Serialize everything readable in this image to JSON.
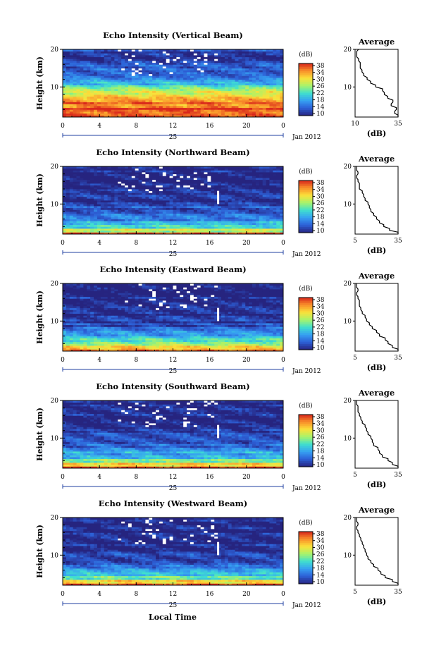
{
  "figure": {
    "xlabel": "Local Time",
    "date_label": "Jan 2012",
    "day_label": "25",
    "time_ticks": [
      "0",
      "4",
      "8",
      "12",
      "16",
      "20",
      "0"
    ],
    "height_axis_label": "Height (km)",
    "height_ticks": [
      "20",
      "10"
    ],
    "colorbar_unit": "(dB)",
    "colorbar_ticks": [
      "38",
      "34",
      "30",
      "26",
      "22",
      "18",
      "14",
      "10"
    ],
    "colormap": [
      "#26247f",
      "#2d5fd6",
      "#36a0f2",
      "#3fe0cf",
      "#a8f36a",
      "#fbe13a",
      "#f98f2a",
      "#d8261b"
    ],
    "average_title": "Average",
    "average_xlabel": "(dB)"
  },
  "chart_data": [
    {
      "type": "heatmap",
      "title": "Echo Intensity (Vertical Beam)",
      "xlabel": "Local Time",
      "ylabel": "Height (km)",
      "xlim": [
        0,
        24
      ],
      "ylim": [
        2,
        20
      ],
      "color_range": [
        10,
        38
      ],
      "color_unit": "dB",
      "profile": {
        "title": "Average",
        "xlabel": "(dB)",
        "x_ticks": [
          "10",
          "35"
        ],
        "xlim": [
          10,
          35
        ],
        "heights": [
          2,
          3,
          4,
          5,
          6,
          7,
          8,
          9,
          10,
          11,
          12,
          13,
          14,
          15,
          16,
          17,
          18,
          19,
          20
        ],
        "values": [
          35,
          33,
          34,
          31,
          32,
          29,
          27,
          26,
          22,
          19,
          17,
          15,
          14,
          13,
          13,
          12,
          11,
          11,
          12
        ]
      }
    },
    {
      "type": "heatmap",
      "title": "Echo Intensity (Northward Beam)",
      "xlabel": "Local Time",
      "ylabel": "Height (km)",
      "xlim": [
        0,
        24
      ],
      "ylim": [
        2,
        20
      ],
      "color_range": [
        10,
        38
      ],
      "color_unit": "dB",
      "profile": {
        "title": "Average",
        "xlabel": "(dB)",
        "x_ticks": [
          "5",
          "35"
        ],
        "xlim": [
          5,
          35
        ],
        "heights": [
          2,
          3,
          4,
          5,
          6,
          7,
          8,
          9,
          10,
          11,
          12,
          13,
          14,
          15,
          16,
          17,
          18,
          19,
          20
        ],
        "values": [
          35,
          29,
          25,
          22,
          20,
          18,
          16,
          15,
          14,
          12,
          11,
          10,
          8,
          8,
          7,
          6,
          7,
          6,
          6
        ]
      }
    },
    {
      "type": "heatmap",
      "title": "Echo Intensity (Eastward Beam)",
      "xlabel": "Local Time",
      "ylabel": "Height (km)",
      "xlim": [
        0,
        24
      ],
      "ylim": [
        2,
        20
      ],
      "color_range": [
        10,
        38
      ],
      "color_unit": "dB",
      "profile": {
        "title": "Average",
        "xlabel": "(dB)",
        "x_ticks": [
          "5",
          "35"
        ],
        "xlim": [
          5,
          35
        ],
        "heights": [
          2,
          3,
          4,
          5,
          6,
          7,
          8,
          9,
          10,
          11,
          12,
          13,
          14,
          15,
          16,
          17,
          18,
          19,
          20
        ],
        "values": [
          35,
          31,
          28,
          26,
          22,
          20,
          17,
          15,
          13,
          12,
          10,
          9,
          8,
          8,
          7,
          6,
          7,
          6,
          6
        ]
      }
    },
    {
      "type": "heatmap",
      "title": "Echo Intensity (Southward Beam)",
      "xlabel": "Local Time",
      "ylabel": "Height (km)",
      "xlim": [
        0,
        24
      ],
      "ylim": [
        2,
        20
      ],
      "color_range": [
        10,
        38
      ],
      "color_unit": "dB",
      "profile": {
        "title": "Average",
        "xlabel": "(dB)",
        "x_ticks": [
          "5",
          "35"
        ],
        "xlim": [
          5,
          35
        ],
        "heights": [
          2,
          3,
          4,
          5,
          6,
          7,
          8,
          9,
          10,
          11,
          12,
          13,
          14,
          15,
          16,
          17,
          18,
          19,
          20
        ],
        "values": [
          35,
          31,
          28,
          24,
          22,
          21,
          18,
          17,
          16,
          14,
          13,
          12,
          10,
          9,
          8,
          7,
          7,
          6,
          6
        ]
      }
    },
    {
      "type": "heatmap",
      "title": "Echo Intensity (Westward Beam)",
      "xlabel": "Local Time",
      "ylabel": "Height (km)",
      "xlim": [
        0,
        24
      ],
      "ylim": [
        2,
        20
      ],
      "color_range": [
        10,
        38
      ],
      "color_unit": "dB",
      "profile": {
        "title": "Average",
        "xlabel": "(dB)",
        "x_ticks": [
          "5",
          "35"
        ],
        "xlim": [
          5,
          35
        ],
        "heights": [
          2,
          3,
          4,
          5,
          6,
          7,
          8,
          9,
          10,
          11,
          12,
          13,
          14,
          15,
          16,
          17,
          18,
          19,
          20
        ],
        "values": [
          35,
          31,
          26,
          23,
          21,
          18,
          16,
          14,
          13,
          12,
          11,
          10,
          9,
          8,
          7,
          6,
          7,
          6,
          6
        ]
      }
    }
  ]
}
